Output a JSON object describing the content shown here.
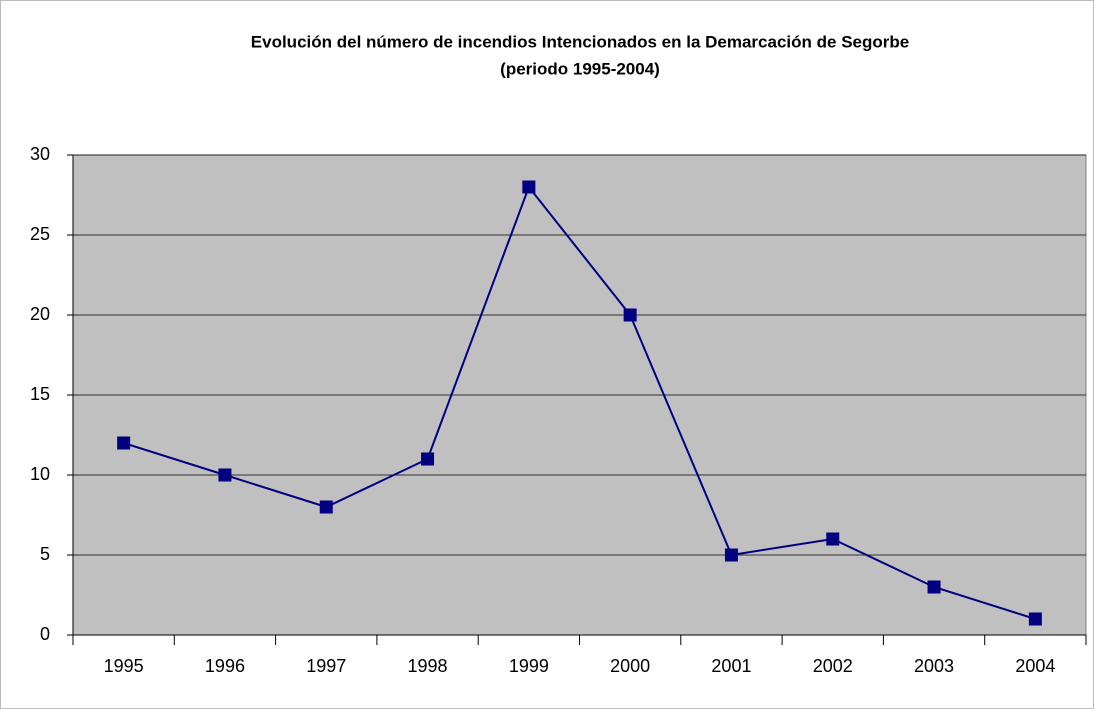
{
  "chart_data": {
    "type": "line",
    "title": "Evolución del número de incendios Intencionados en la Demarcación de Segorbe",
    "subtitle": "(periodo 1995-2004)",
    "categories": [
      "1995",
      "1996",
      "1997",
      "1998",
      "1999",
      "2000",
      "2001",
      "2002",
      "2003",
      "2004"
    ],
    "values": [
      12,
      10,
      8,
      11,
      28,
      20,
      5,
      6,
      3,
      1
    ],
    "color": "#000080",
    "ylim": [
      0,
      30
    ],
    "yticks": [
      0,
      5,
      10,
      15,
      20,
      25,
      30
    ],
    "grid": true
  }
}
